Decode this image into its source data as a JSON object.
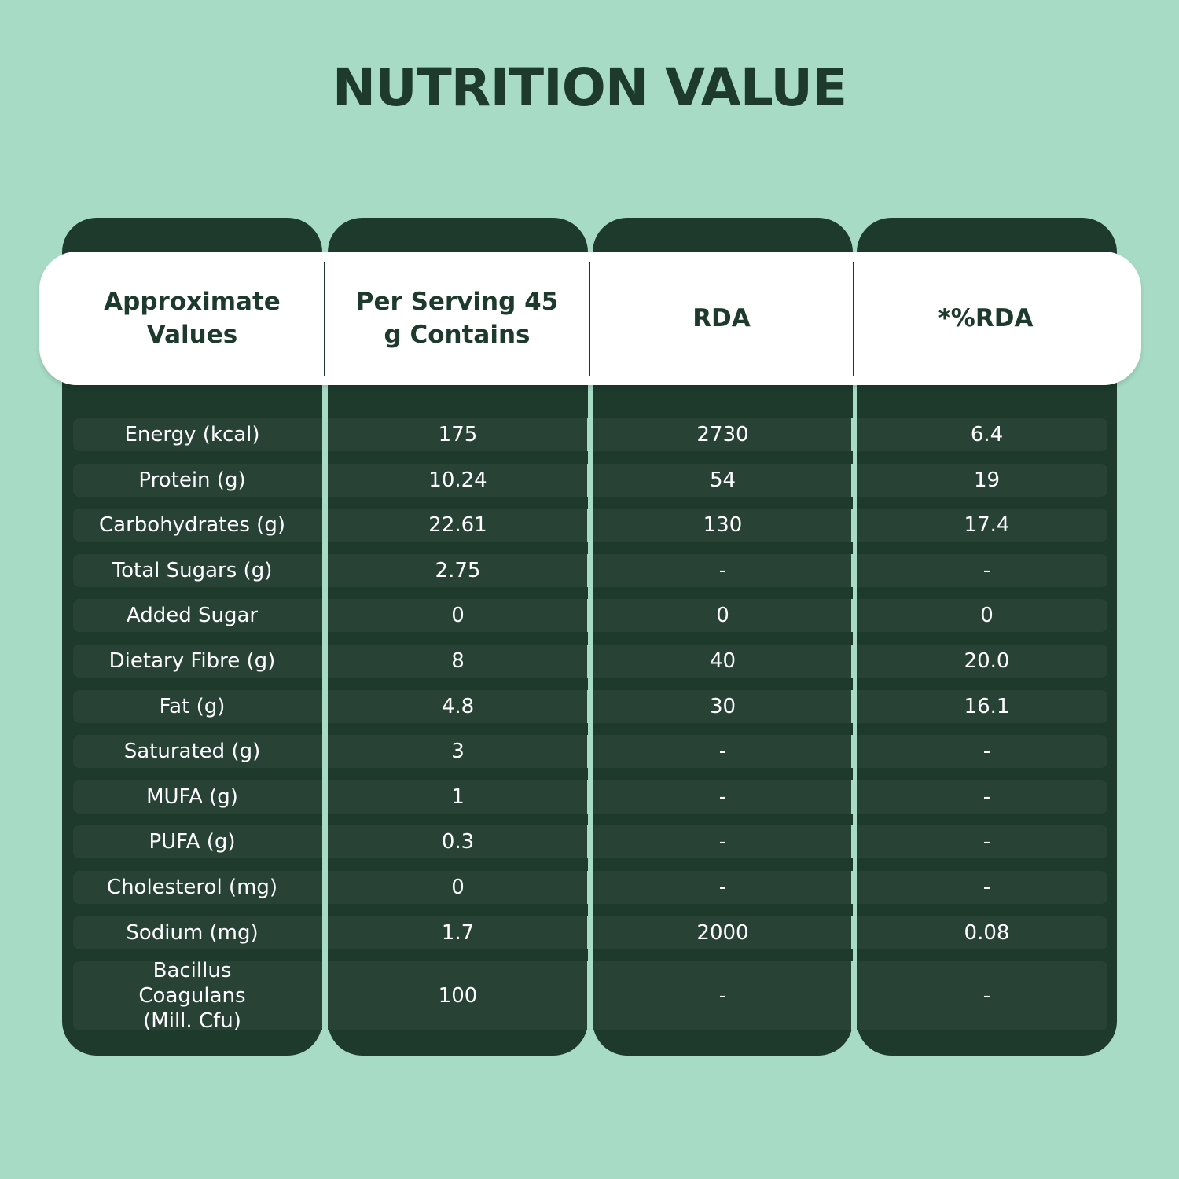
{
  "title": "NUTRITION VALUE",
  "headers": [
    "Approximate Values",
    "Per Serving 45 g Contains",
    "RDA",
    "*%RDA"
  ],
  "rows": [
    [
      "Energy (kcal)",
      "175",
      "2730",
      "6.4"
    ],
    [
      "Protein (g)",
      "10.24",
      "54",
      "19"
    ],
    [
      "Carbohydrates (g)",
      "22.61",
      "130",
      "17.4"
    ],
    [
      "Total Sugars (g)",
      "2.75",
      "-",
      "-"
    ],
    [
      "Added Sugar",
      "0",
      "0",
      "0"
    ],
    [
      "Dietary Fibre (g)",
      "8",
      "40",
      "20.0"
    ],
    [
      "Fat (g)",
      "4.8",
      "30",
      "16.1"
    ],
    [
      "Saturated (g)",
      "3",
      "-",
      "-"
    ],
    [
      "MUFA (g)",
      "1",
      "-",
      "-"
    ],
    [
      "PUFA (g)",
      "0.3",
      "-",
      "-"
    ],
    [
      "Cholesterol (mg)",
      "0",
      "-",
      "-"
    ],
    [
      "Sodium (mg)",
      "1.7",
      "2000",
      "0.08"
    ],
    [
      "Bacillus Coagulans (Mill. Cfu)",
      "100",
      "-",
      "-"
    ]
  ],
  "colors": {
    "background": "#a7dbc5",
    "column": "#1d3a2c",
    "row_strip": "#284236",
    "header_band": "#ffffff"
  }
}
